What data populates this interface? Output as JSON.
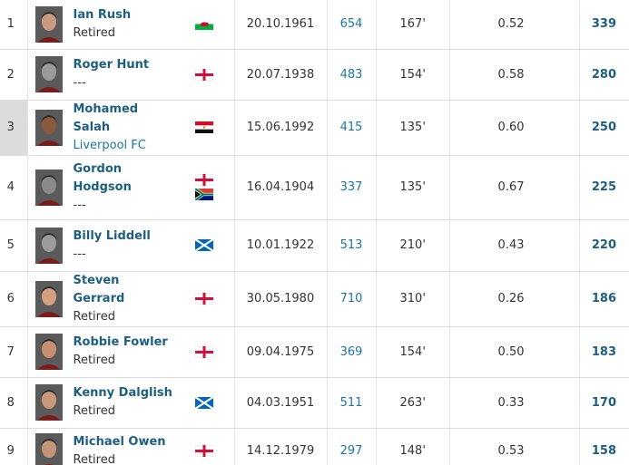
{
  "rows": [
    {
      "rank": 1,
      "name": "Ian Rush",
      "club": "Retired",
      "born": "20.10.1961",
      "matches": 654,
      "minutes": "167'",
      "per_match": "0.52",
      "goals": 339
    },
    {
      "rank": 2,
      "name": "Roger Hunt",
      "club": "---",
      "born": "20.07.1938",
      "matches": 483,
      "minutes": "154'",
      "per_match": "0.58",
      "goals": 280
    },
    {
      "rank": 3,
      "name": "Mohamed Salah",
      "club": "Liverpool FC",
      "born": "15.06.1992",
      "matches": 415,
      "minutes": "135'",
      "per_match": "0.60",
      "goals": 250
    },
    {
      "rank": 4,
      "name": "Gordon Hodgson",
      "club": "---",
      "born": "16.04.1904",
      "matches": 337,
      "minutes": "135'",
      "per_match": "0.67",
      "goals": 225
    },
    {
      "rank": 5,
      "name": "Billy Liddell",
      "club": "---",
      "born": "10.01.1922",
      "matches": 513,
      "minutes": "210'",
      "per_match": "0.43",
      "goals": 220
    },
    {
      "rank": 6,
      "name": "Steven Gerrard",
      "club": "Retired",
      "born": "30.05.1980",
      "matches": 710,
      "minutes": "310'",
      "per_match": "0.26",
      "goals": 186
    },
    {
      "rank": 7,
      "name": "Robbie Fowler",
      "club": "Retired",
      "born": "09.04.1975",
      "matches": 369,
      "minutes": "154'",
      "per_match": "0.50",
      "goals": 183
    },
    {
      "rank": 8,
      "name": "Kenny Dalglish",
      "club": "Retired",
      "born": "04.03.1951",
      "matches": 511,
      "minutes": "263'",
      "per_match": "0.33",
      "goals": 170
    },
    {
      "rank": 9,
      "name": "Michael Owen",
      "club": "Retired",
      "born": "14.12.1979",
      "matches": 297,
      "minutes": "148'",
      "per_match": "0.53",
      "goals": 158
    }
  ]
}
